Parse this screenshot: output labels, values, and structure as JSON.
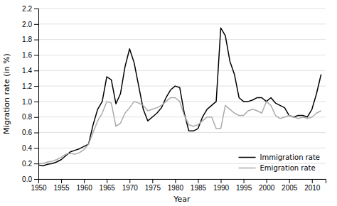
{
  "chart_data": {
    "type": "line",
    "x_label": "Year",
    "y_label": "Migration rate (in %)",
    "x": [
      1950,
      1951,
      1952,
      1953,
      1954,
      1955,
      1956,
      1957,
      1958,
      1959,
      1960,
      1961,
      1962,
      1963,
      1964,
      1965,
      1966,
      1967,
      1968,
      1969,
      1970,
      1971,
      1972,
      1973,
      1974,
      1975,
      1976,
      1977,
      1978,
      1979,
      1980,
      1981,
      1982,
      1983,
      1984,
      1985,
      1986,
      1987,
      1988,
      1989,
      1990,
      1991,
      1992,
      1993,
      1994,
      1995,
      1996,
      1997,
      1998,
      1999,
      2000,
      2001,
      2002,
      2003,
      2004,
      2005,
      2006,
      2007,
      2008,
      2009,
      2010,
      2011,
      2012
    ],
    "series": [
      {
        "name": "Immigration rate",
        "color": "#000000",
        "values": [
          0.18,
          0.17,
          0.19,
          0.2,
          0.22,
          0.25,
          0.3,
          0.35,
          0.37,
          0.39,
          0.42,
          0.45,
          0.7,
          0.9,
          1.0,
          1.32,
          1.28,
          0.97,
          1.1,
          1.45,
          1.68,
          1.5,
          1.2,
          0.9,
          0.75,
          0.8,
          0.85,
          0.92,
          1.05,
          1.15,
          1.2,
          1.18,
          0.85,
          0.62,
          0.62,
          0.65,
          0.8,
          0.9,
          0.95,
          1.0,
          1.95,
          1.85,
          1.52,
          1.35,
          1.05,
          1.0,
          1.0,
          1.02,
          1.05,
          1.05,
          1.0,
          1.05,
          0.98,
          0.95,
          0.92,
          0.82,
          0.8,
          0.82,
          0.82,
          0.8,
          0.9,
          1.1,
          1.35
        ]
      },
      {
        "name": "Emigration rate",
        "color": "#aaaaaa",
        "values": [
          0.2,
          0.2,
          0.22,
          0.23,
          0.25,
          0.28,
          0.32,
          0.33,
          0.32,
          0.34,
          0.38,
          0.45,
          0.6,
          0.75,
          0.85,
          1.0,
          0.98,
          0.68,
          0.72,
          0.85,
          0.92,
          1.0,
          0.98,
          0.95,
          0.88,
          0.9,
          0.92,
          0.95,
          1.0,
          1.05,
          1.05,
          1.0,
          0.82,
          0.7,
          0.68,
          0.7,
          0.75,
          0.8,
          0.8,
          0.65,
          0.65,
          0.95,
          0.9,
          0.85,
          0.82,
          0.82,
          0.88,
          0.9,
          0.88,
          0.85,
          1.0,
          0.95,
          0.82,
          0.78,
          0.8,
          0.82,
          0.8,
          0.78,
          0.8,
          0.78,
          0.8,
          0.85,
          0.88
        ]
      }
    ],
    "xlim": [
      1950,
      2013
    ],
    "ylim": [
      0.0,
      2.2
    ],
    "xticks": [
      1950,
      1955,
      1960,
      1965,
      1970,
      1975,
      1980,
      1985,
      1990,
      1995,
      2000,
      2005,
      2010
    ],
    "yticks": [
      {
        "value": 0.0,
        "label": "0.0"
      },
      0.2,
      0.4,
      0.6,
      0.8,
      {
        "value": 1.0,
        "label": "1.0"
      },
      1.2,
      1.4,
      1.6,
      1.8,
      {
        "value": 2.0,
        "label": "2.0"
      },
      2.2
    ],
    "grid": true,
    "legend": "lower right"
  }
}
